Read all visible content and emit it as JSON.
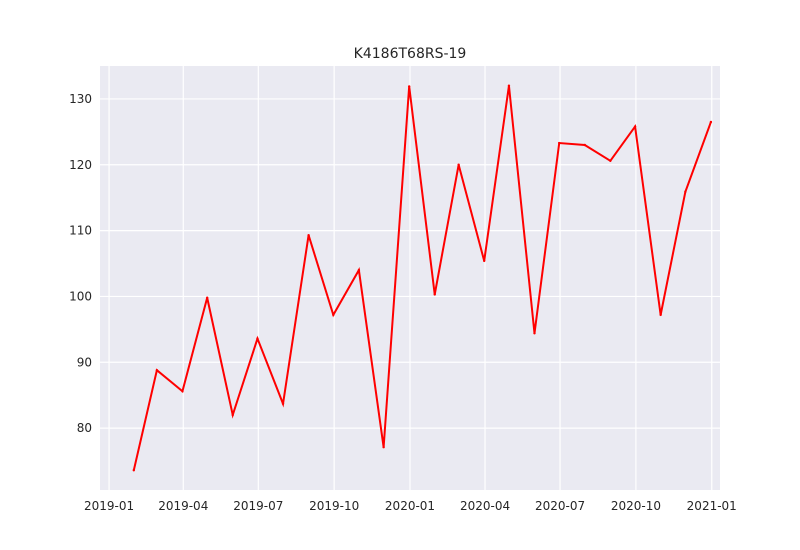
{
  "chart_data": {
    "type": "line",
    "title": "K4186T68RS-19",
    "xlabel": "",
    "ylabel": "",
    "x_ticks": [
      "2019-01",
      "2019-04",
      "2019-07",
      "2019-10",
      "2020-01",
      "2020-04",
      "2020-07",
      "2020-10",
      "2021-01"
    ],
    "y_ticks": [
      80,
      90,
      100,
      110,
      120,
      130
    ],
    "xlim": [
      "2018-12-21",
      "2021-01-11"
    ],
    "ylim": [
      70.6,
      135.0
    ],
    "grid": true,
    "line_color": "#ff0000",
    "background_color": "#eaeaf2",
    "series": [
      {
        "x": [
          "2019-01-31",
          "2019-02-28",
          "2019-03-31",
          "2019-04-30",
          "2019-05-31",
          "2019-06-30",
          "2019-07-31",
          "2019-08-31",
          "2019-09-30",
          "2019-10-31",
          "2019-11-30",
          "2019-12-31",
          "2020-01-31",
          "2020-02-29",
          "2020-03-31",
          "2020-04-30",
          "2020-05-31",
          "2020-06-30",
          "2020-07-31",
          "2020-08-31",
          "2020-09-30",
          "2020-10-31",
          "2020-11-30",
          "2020-12-31"
        ],
        "y": [
          73.6,
          88.8,
          85.6,
          99.8,
          82.0,
          93.6,
          83.7,
          109.3,
          97.2,
          104.0,
          77.1,
          131.9,
          100.3,
          120.0,
          105.4,
          132.0,
          94.4,
          123.3,
          123.0,
          120.6,
          125.8,
          97.2,
          115.9,
          126.5
        ]
      }
    ]
  }
}
